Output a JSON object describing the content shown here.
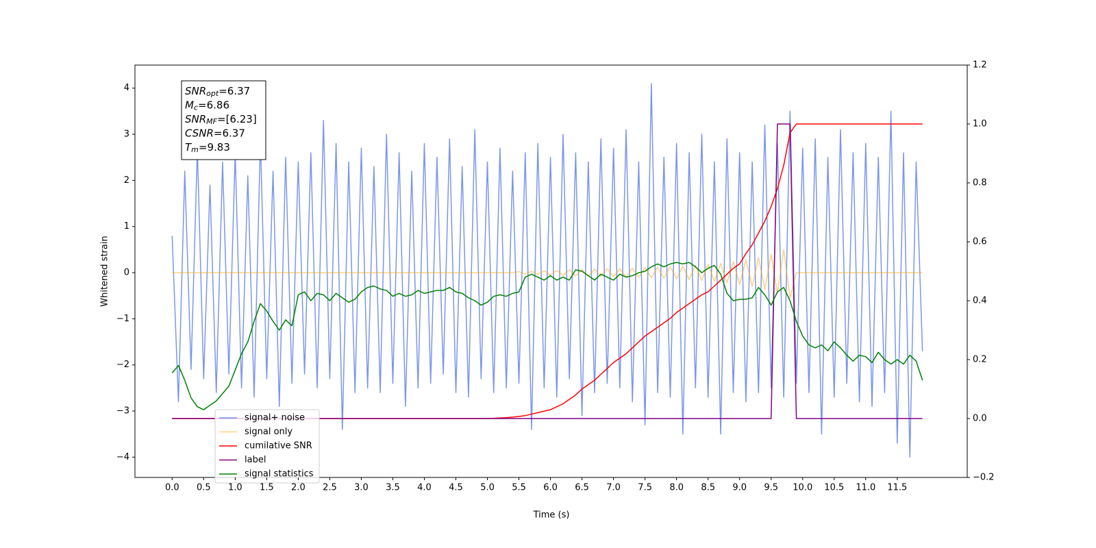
{
  "chart_data": {
    "type": "line",
    "xlabel": "Time (s)",
    "ylabel": "Whitened strain",
    "xlim": [
      -0.59,
      12.61
    ],
    "ylim": [
      -4.44,
      4.5
    ],
    "y2lim": [
      -0.2,
      1.2
    ],
    "xticks": [
      {
        "value": 0,
        "label": "0.0"
      },
      0.5,
      {
        "value": 1,
        "label": "1.0"
      },
      1.5,
      {
        "value": 2,
        "label": "2.0"
      },
      2.5,
      {
        "value": 3,
        "label": "3.0"
      },
      3.5,
      {
        "value": 4,
        "label": "4.0"
      },
      4.5,
      {
        "value": 5,
        "label": "5.0"
      },
      5.5,
      {
        "value": 6,
        "label": "6.0"
      },
      6.5,
      {
        "value": 7,
        "label": "7.0"
      },
      7.5,
      {
        "value": 8,
        "label": "8.0"
      },
      8.5,
      {
        "value": 9,
        "label": "9.0"
      },
      9.5,
      {
        "value": 10,
        "label": "10.0"
      },
      10.5,
      {
        "value": 11,
        "label": "11.0"
      },
      11.5
    ],
    "yticks": [
      {
        "value": -4,
        "label": "−4"
      },
      {
        "value": -3,
        "label": "−3"
      },
      {
        "value": -2,
        "label": "−2"
      },
      {
        "value": -1,
        "label": "−1"
      },
      0,
      1,
      2,
      3,
      4
    ],
    "y2ticks": [
      {
        "value": -0.2,
        "label": "−0.2"
      },
      {
        "value": 0,
        "label": "0.0"
      },
      0.2,
      0.4,
      0.6,
      0.8,
      {
        "value": 1,
        "label": "1.0"
      },
      1.2
    ],
    "legend": "lower left",
    "annotation": [
      {
        "main": "SNR",
        "sub": "opt",
        "rest": "=6.37"
      },
      {
        "main": "M",
        "sub": "c",
        "rest": "=6.86"
      },
      {
        "main": "SNR",
        "sub": "MF",
        "rest": "=[6.23]"
      },
      {
        "main": "CSNR",
        "sub": "",
        "rest": "=6.37"
      },
      {
        "main": "T",
        "sub": "m",
        "rest": "=9.83"
      }
    ],
    "x": [
      0,
      0.1,
      0.2,
      0.3,
      0.4,
      0.5,
      0.6,
      0.7,
      0.8,
      0.9,
      1,
      1.1,
      1.2,
      1.3,
      1.4,
      1.5,
      1.6,
      1.7,
      1.8,
      1.9,
      2,
      2.1,
      2.2,
      2.3,
      2.4,
      2.5,
      2.6,
      2.7,
      2.8,
      2.9,
      3,
      3.1,
      3.2,
      3.3,
      3.4,
      3.5,
      3.6,
      3.7,
      3.8,
      3.9,
      4,
      4.1,
      4.2,
      4.3,
      4.4,
      4.5,
      4.6,
      4.7,
      4.8,
      4.9,
      5,
      5.1,
      5.2,
      5.3,
      5.4,
      5.5,
      5.6,
      5.7,
      5.8,
      5.9,
      6,
      6.1,
      6.2,
      6.3,
      6.4,
      6.5,
      6.6,
      6.7,
      6.8,
      6.9,
      7,
      7.1,
      7.2,
      7.3,
      7.4,
      7.5,
      7.6,
      7.7,
      7.8,
      7.9,
      8,
      8.1,
      8.2,
      8.3,
      8.4,
      8.5,
      8.6,
      8.7,
      8.8,
      8.9,
      9,
      9.1,
      9.2,
      9.3,
      9.4,
      9.5,
      9.6,
      9.7,
      9.8,
      9.9,
      10,
      10.1,
      10.2,
      10.3,
      10.4,
      10.5,
      10.6,
      10.7,
      10.8,
      10.9,
      11,
      11.1,
      11.2,
      11.3,
      11.4,
      11.5,
      11.6,
      11.7,
      11.8,
      11.9
    ],
    "series": [
      {
        "name": "signal+ noise",
        "color": "#4169e1",
        "alpha": 0.7,
        "axis": "y",
        "values": [
          0.8,
          -2.8,
          2.2,
          -2.1,
          2.7,
          -2.3,
          1.9,
          -2.6,
          2.4,
          -2.2,
          2.6,
          -2.5,
          2.1,
          -2.7,
          2.9,
          -2.3,
          2.2,
          -2.9,
          2.5,
          -2.4,
          2.4,
          -2.2,
          2.6,
          -2.5,
          3.3,
          -2.3,
          2.8,
          -3.4,
          2.4,
          -2.6,
          2.7,
          -2.5,
          2.3,
          -2.6,
          3.0,
          -2.4,
          2.6,
          -2.9,
          2.2,
          -2.5,
          2.8,
          -2.4,
          2.5,
          -2.2,
          2.9,
          -2.6,
          2.3,
          -2.7,
          3.1,
          -2.3,
          2.4,
          -2.6,
          2.7,
          -2.5,
          2.2,
          -2.4,
          2.6,
          -3.4,
          2.8,
          -2.5,
          2.5,
          -2.7,
          3.0,
          -2.3,
          2.6,
          -3.1,
          2.4,
          -2.6,
          2.9,
          -2.4,
          2.7,
          -2.5,
          3.1,
          -2.8,
          2.4,
          -3.3,
          4.1,
          -2.6,
          2.5,
          -2.7,
          2.8,
          -3.5,
          2.6,
          -2.5,
          3.0,
          -2.7,
          2.4,
          -3.5,
          2.9,
          -2.6,
          2.6,
          -2.8,
          2.4,
          -2.6,
          3.2,
          -2.5,
          2.8,
          -2.7,
          3.5,
          -2.4,
          2.7,
          -2.6,
          2.9,
          -3.5,
          2.5,
          -2.7,
          3.1,
          -2.4,
          2.6,
          -2.8,
          2.8,
          -2.9,
          2.5,
          -2.6,
          3.5,
          -3.7,
          2.6,
          -4.0,
          2.4,
          -1.7
        ]
      },
      {
        "name": "signal only",
        "color": "orange",
        "alpha": 0.5,
        "axis": "y",
        "values": [
          0,
          0,
          0,
          0,
          0,
          0,
          0,
          0,
          0,
          0,
          0,
          0,
          0,
          0,
          0,
          0,
          0,
          0,
          0,
          0,
          0,
          0,
          0,
          0,
          0,
          0,
          0,
          0,
          0,
          0,
          0,
          0,
          0,
          0,
          0,
          0,
          0,
          0,
          0,
          0,
          0,
          0,
          0,
          0,
          0,
          0,
          0,
          0,
          0,
          0,
          0,
          0,
          0,
          0,
          0,
          0.02,
          -0.03,
          0.03,
          -0.04,
          0.04,
          -0.05,
          0.05,
          -0.06,
          0.06,
          -0.07,
          0.07,
          -0.08,
          0.08,
          -0.08,
          0.09,
          -0.09,
          0.09,
          -0.1,
          0.1,
          -0.1,
          0.11,
          -0.11,
          0.12,
          -0.12,
          0.13,
          -0.13,
          0.14,
          -0.15,
          0.16,
          -0.17,
          0.18,
          -0.19,
          0.2,
          -0.22,
          0.24,
          -0.26,
          0.28,
          -0.3,
          0.33,
          -0.36,
          0.4,
          -0.45,
          0.5,
          -0.55,
          0,
          0,
          0,
          0,
          0,
          0,
          0,
          0,
          0,
          0,
          0,
          0,
          0,
          0,
          0,
          0,
          0,
          0,
          0,
          0,
          0
        ]
      },
      {
        "name": "cumilative SNR",
        "color": "red",
        "alpha": 1,
        "axis": "y2",
        "values": [
          0,
          0,
          0,
          0,
          0,
          0,
          0,
          0,
          0,
          0,
          0,
          0,
          0,
          0,
          0,
          0,
          0,
          0,
          0,
          0,
          0,
          0,
          0,
          0,
          0,
          0,
          0,
          0,
          0,
          0,
          0,
          0,
          0,
          0,
          0,
          0,
          0,
          0,
          0,
          0,
          0,
          0,
          0,
          0,
          0,
          0,
          0,
          0,
          0,
          0,
          0,
          0.001,
          0.002,
          0.003,
          0.005,
          0.007,
          0.01,
          0.015,
          0.02,
          0.025,
          0.03,
          0.04,
          0.05,
          0.065,
          0.08,
          0.1,
          0.115,
          0.13,
          0.15,
          0.17,
          0.19,
          0.205,
          0.22,
          0.24,
          0.26,
          0.28,
          0.295,
          0.31,
          0.325,
          0.34,
          0.36,
          0.375,
          0.39,
          0.405,
          0.42,
          0.43,
          0.45,
          0.47,
          0.49,
          0.51,
          0.525,
          0.56,
          0.59,
          0.63,
          0.67,
          0.72,
          0.78,
          0.86,
          0.97,
          1,
          1,
          1,
          1,
          1,
          1,
          1,
          1,
          1,
          1,
          1,
          1,
          1,
          1,
          1,
          1,
          1,
          1,
          1,
          1,
          1
        ]
      },
      {
        "name": "label",
        "color": "purple",
        "alpha": 1,
        "axis": "y2",
        "values": [
          0,
          0,
          0,
          0,
          0,
          0,
          0,
          0,
          0,
          0,
          0,
          0,
          0,
          0,
          0,
          0,
          0,
          0,
          0,
          0,
          0,
          0,
          0,
          0,
          0,
          0,
          0,
          0,
          0,
          0,
          0,
          0,
          0,
          0,
          0,
          0,
          0,
          0,
          0,
          0,
          0,
          0,
          0,
          0,
          0,
          0,
          0,
          0,
          0,
          0,
          0,
          0,
          0,
          0,
          0,
          0,
          0,
          0,
          0,
          0,
          0,
          0,
          0,
          0,
          0,
          0,
          0,
          0,
          0,
          0,
          0,
          0,
          0,
          0,
          0,
          0,
          0,
          0,
          0,
          0,
          0,
          0,
          0,
          0,
          0,
          0,
          0,
          0,
          0,
          0,
          0,
          0,
          0,
          0,
          0,
          0,
          1,
          1,
          1,
          0,
          0,
          0,
          0,
          0,
          0,
          0,
          0,
          0,
          0,
          0,
          0,
          0,
          0,
          0,
          0,
          0,
          0,
          0,
          0,
          0
        ]
      },
      {
        "name": "signal statistics",
        "color": "green",
        "alpha": 1,
        "axis": "y2",
        "values": [
          0.155,
          0.18,
          0.13,
          0.07,
          0.04,
          0.03,
          0.045,
          0.06,
          0.085,
          0.11,
          0.165,
          0.22,
          0.26,
          0.33,
          0.39,
          0.365,
          0.33,
          0.3,
          0.335,
          0.315,
          0.42,
          0.43,
          0.4,
          0.425,
          0.42,
          0.4,
          0.425,
          0.41,
          0.395,
          0.405,
          0.43,
          0.445,
          0.45,
          0.44,
          0.435,
          0.415,
          0.425,
          0.415,
          0.42,
          0.435,
          0.425,
          0.43,
          0.435,
          0.435,
          0.445,
          0.43,
          0.425,
          0.41,
          0.4,
          0.385,
          0.395,
          0.415,
          0.42,
          0.415,
          0.425,
          0.43,
          0.48,
          0.49,
          0.48,
          0.47,
          0.485,
          0.47,
          0.48,
          0.47,
          0.505,
          0.5,
          0.485,
          0.47,
          0.49,
          0.48,
          0.47,
          0.49,
          0.48,
          0.485,
          0.495,
          0.5,
          0.515,
          0.525,
          0.515,
          0.525,
          0.53,
          0.525,
          0.53,
          0.515,
          0.495,
          0.51,
          0.52,
          0.49,
          0.425,
          0.4,
          0.405,
          0.405,
          0.41,
          0.445,
          0.42,
          0.385,
          0.43,
          0.445,
          0.4,
          0.33,
          0.28,
          0.25,
          0.24,
          0.25,
          0.23,
          0.26,
          0.24,
          0.215,
          0.195,
          0.215,
          0.21,
          0.19,
          0.225,
          0.2,
          0.185,
          0.2,
          0.185,
          0.215,
          0.195,
          0.13
        ]
      }
    ]
  }
}
